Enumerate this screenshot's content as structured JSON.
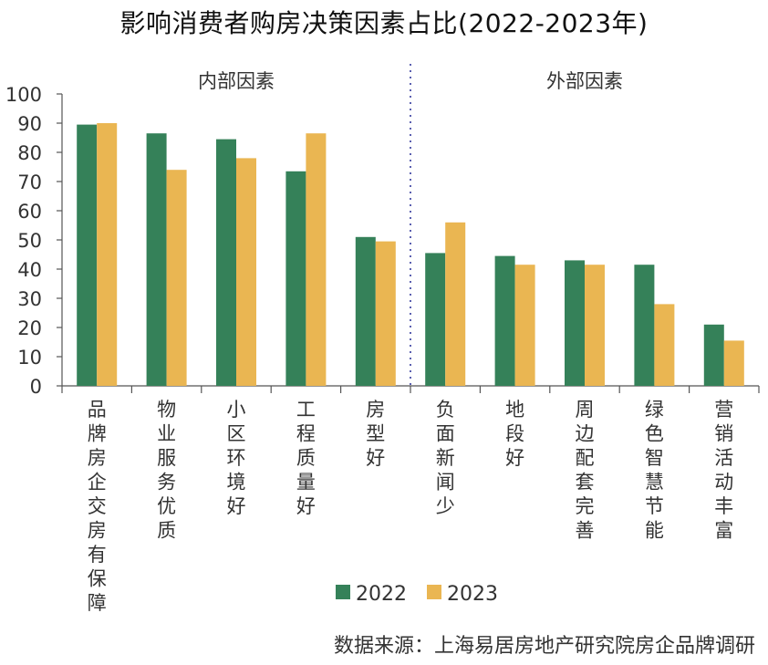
{
  "chart_data": {
    "type": "bar",
    "title": "影响消费者购房决策因素占比(2022-2023年)",
    "ylim": [
      0,
      100
    ],
    "yticks": [
      0,
      10,
      20,
      30,
      40,
      50,
      60,
      70,
      80,
      90,
      100
    ],
    "groups": [
      {
        "label": "内部因素",
        "start": 0,
        "end": 4
      },
      {
        "label": "外部因素",
        "start": 5,
        "end": 9
      }
    ],
    "categories": [
      "品牌房企交房有保障",
      "物业服务优质",
      "小区环境好",
      "工程质量好",
      "房型好",
      "负面新闻少",
      "地段好",
      "周边配套完善",
      "绿色智慧节能",
      "营销活动丰富"
    ],
    "series": [
      {
        "name": "2022",
        "color": "#358159",
        "values": [
          89.5,
          86.5,
          84.5,
          73.5,
          51,
          45.5,
          44.5,
          43,
          41.5,
          21
        ]
      },
      {
        "name": "2023",
        "color": "#EAB652",
        "values": [
          90,
          74,
          78,
          86.5,
          49.5,
          56,
          41.5,
          41.5,
          28,
          15.5
        ]
      }
    ],
    "source": "数据来源：上海易居房地产研究院房企品牌调研"
  }
}
